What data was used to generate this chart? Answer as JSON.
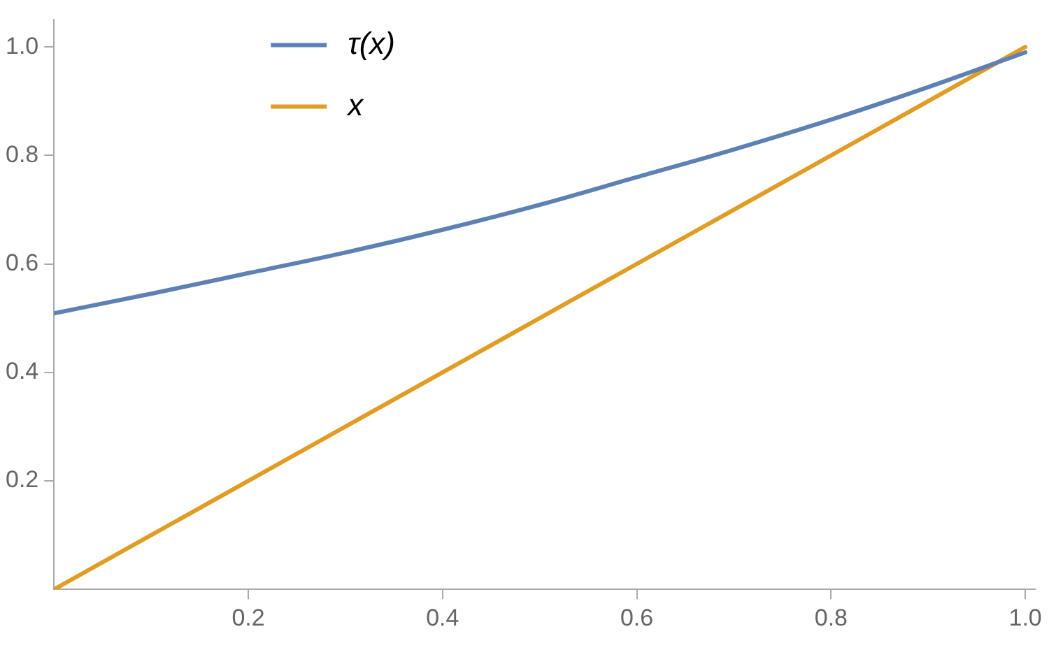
{
  "chart_data": {
    "type": "line",
    "xlim": [
      0,
      1.01
    ],
    "ylim": [
      0,
      1.05
    ],
    "xticks": [
      0.2,
      0.4,
      0.6,
      0.8,
      {
        "value": 1,
        "label": "1.0"
      }
    ],
    "yticks": [
      0.2,
      0.4,
      0.6,
      0.8,
      {
        "value": 1,
        "label": "1.0"
      }
    ],
    "grid": false,
    "legend": "top left",
    "marker": "none",
    "line_style": "solid",
    "series": [
      {
        "name": "τ(x)",
        "color": "#5e81b5",
        "x": [
          0,
          0.1,
          0.2,
          0.3,
          0.4,
          0.5,
          0.6,
          0.7,
          0.8,
          0.9,
          1.0
        ],
        "values": [
          0.509,
          0.545,
          0.583,
          0.621,
          0.663,
          0.709,
          0.76,
          0.811,
          0.866,
          0.926,
          0.99
        ]
      },
      {
        "name": "x",
        "color": "#e19c24",
        "x": [
          0,
          1.0
        ],
        "values": [
          0,
          1.0
        ]
      }
    ]
  }
}
